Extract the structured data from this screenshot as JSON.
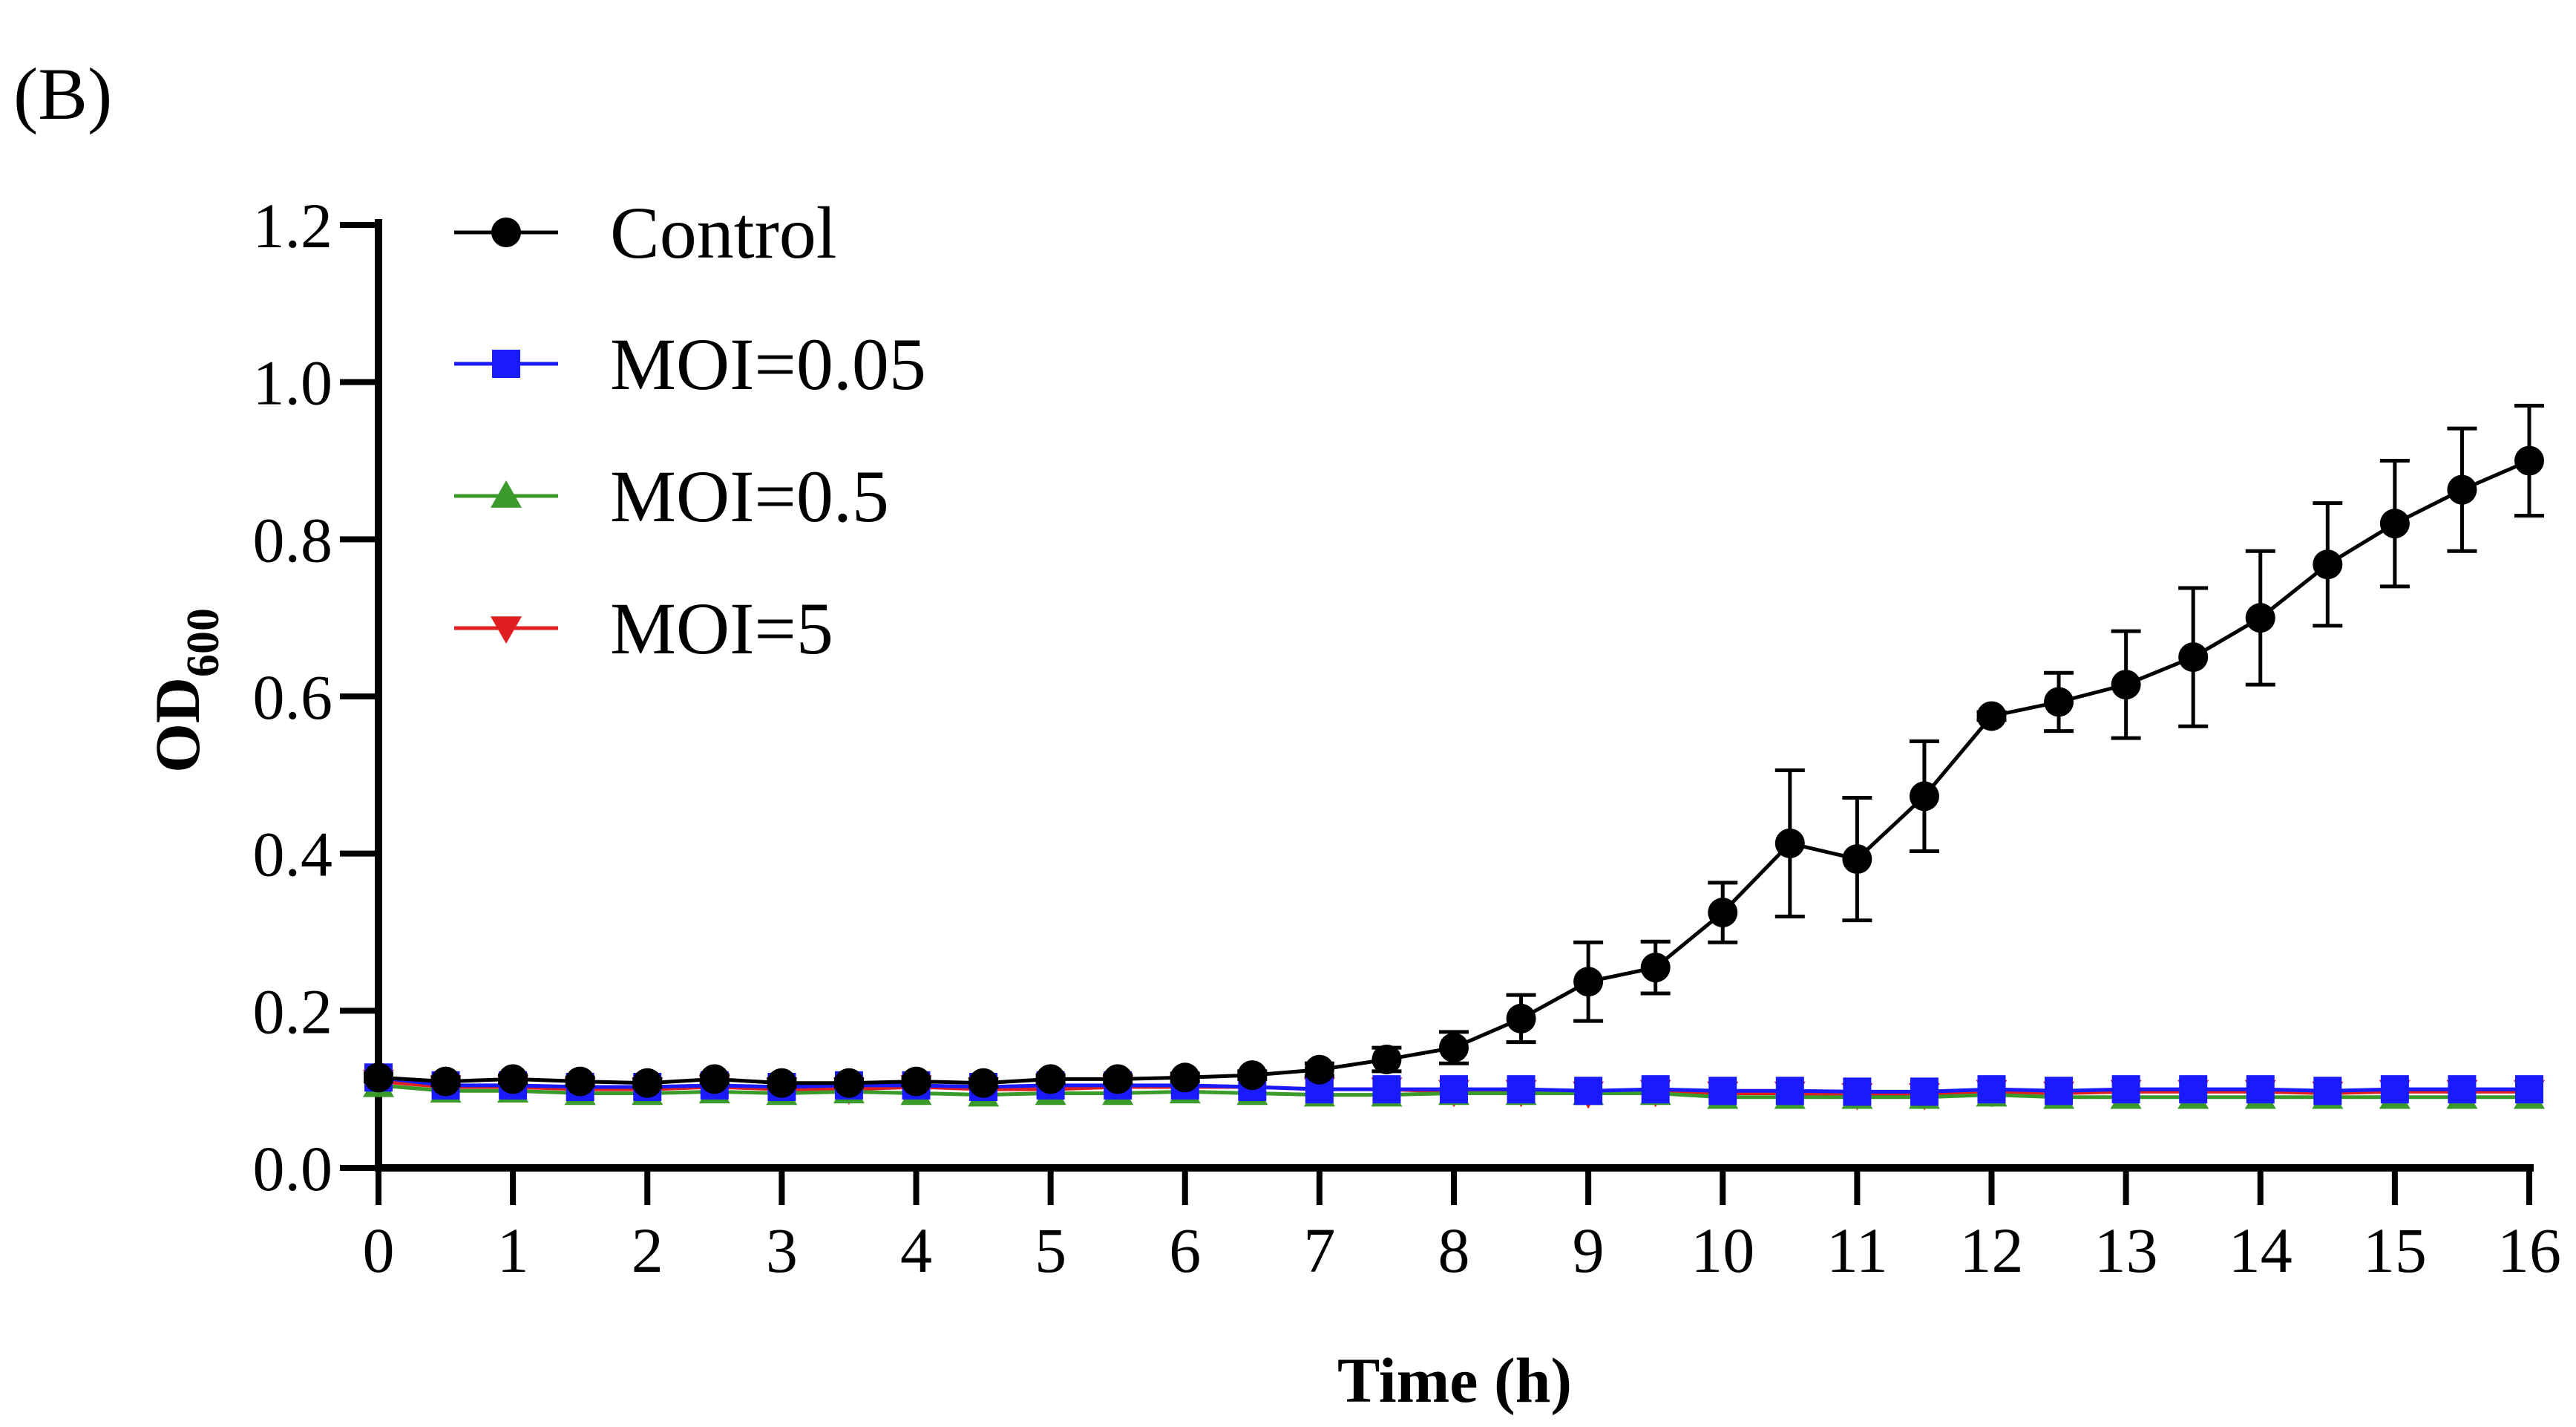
{
  "panel_label": "(B)",
  "chart_data": {
    "type": "line",
    "title": "",
    "xlabel": "Time (h)",
    "ylabel_main": "OD",
    "ylabel_sub": "600",
    "xlim": [
      0,
      16
    ],
    "ylim": [
      0,
      1.2
    ],
    "x_ticks": [
      0,
      1,
      2,
      3,
      4,
      5,
      6,
      7,
      8,
      9,
      10,
      11,
      12,
      13,
      14,
      15,
      16
    ],
    "x_tick_labels": [
      "0",
      "1",
      "2",
      "3",
      "4",
      "5",
      "6",
      "7",
      "8",
      "9",
      "10",
      "11",
      "12",
      "13",
      "14",
      "15",
      "16"
    ],
    "y_ticks": [
      0,
      0.2,
      0.4,
      0.6,
      0.8,
      1.0,
      1.2
    ],
    "y_tick_labels": [
      "0.0",
      "0.2",
      "0.4",
      "0.6",
      "0.8",
      "1.0",
      "1.2"
    ],
    "legend_position": "top-left",
    "x": [
      0,
      0.5,
      1,
      1.5,
      2,
      2.5,
      3,
      3.5,
      4,
      4.5,
      5,
      5.5,
      6,
      6.5,
      7,
      7.5,
      8,
      8.5,
      9,
      9.5,
      10,
      10.5,
      11,
      11.5,
      12,
      12.5,
      13,
      13.5,
      14,
      14.5,
      15,
      15.5,
      16
    ],
    "series": [
      {
        "name": "Control",
        "color": "#000000",
        "marker": "circle",
        "values": [
          0.115,
          0.11,
          0.113,
          0.11,
          0.108,
          0.113,
          0.108,
          0.108,
          0.11,
          0.108,
          0.113,
          0.113,
          0.115,
          0.118,
          0.125,
          0.138,
          0.153,
          0.19,
          0.237,
          0.255,
          0.325,
          0.413,
          0.393,
          0.473,
          0.575,
          0.593,
          0.615,
          0.65,
          0.7,
          0.768,
          0.82,
          0.863,
          0.9
        ],
        "errors": [
          0.005,
          0.005,
          0.005,
          0.005,
          0.005,
          0.005,
          0.005,
          0.005,
          0.005,
          0.005,
          0.005,
          0.005,
          0.005,
          0.005,
          0.008,
          0.015,
          0.02,
          0.03,
          0.05,
          0.033,
          0.038,
          0.093,
          0.078,
          0.07,
          0.005,
          0.037,
          0.068,
          0.088,
          0.085,
          0.078,
          0.08,
          0.078,
          0.07
        ]
      },
      {
        "name": "MOI=0.05",
        "color": "#1a1aff",
        "marker": "square",
        "values": [
          0.115,
          0.105,
          0.105,
          0.103,
          0.103,
          0.105,
          0.103,
          0.105,
          0.105,
          0.103,
          0.105,
          0.105,
          0.105,
          0.103,
          0.1,
          0.1,
          0.1,
          0.1,
          0.098,
          0.1,
          0.098,
          0.098,
          0.097,
          0.097,
          0.1,
          0.098,
          0.1,
          0.1,
          0.1,
          0.098,
          0.1,
          0.1,
          0.1
        ],
        "errors": null
      },
      {
        "name": "MOI=0.5",
        "color": "#3a9a2a",
        "marker": "triangle-up",
        "values": [
          0.105,
          0.098,
          0.098,
          0.095,
          0.095,
          0.097,
          0.095,
          0.097,
          0.095,
          0.093,
          0.095,
          0.095,
          0.097,
          0.095,
          0.093,
          0.093,
          0.095,
          0.095,
          0.095,
          0.095,
          0.09,
          0.09,
          0.09,
          0.09,
          0.093,
          0.09,
          0.09,
          0.09,
          0.09,
          0.09,
          0.09,
          0.09,
          0.09
        ],
        "errors": null
      },
      {
        "name": "MOI=5",
        "color": "#e02020",
        "marker": "triangle-down",
        "values": [
          0.11,
          0.103,
          0.103,
          0.1,
          0.1,
          0.103,
          0.1,
          0.1,
          0.103,
          0.1,
          0.1,
          0.103,
          0.103,
          0.103,
          0.1,
          0.1,
          0.097,
          0.097,
          0.095,
          0.097,
          0.095,
          0.095,
          0.093,
          0.093,
          0.097,
          0.095,
          0.097,
          0.097,
          0.097,
          0.095,
          0.097,
          0.097,
          0.097
        ],
        "errors": null
      }
    ]
  }
}
